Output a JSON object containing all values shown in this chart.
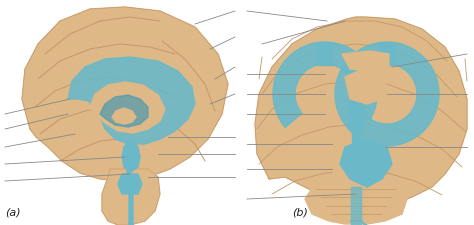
{
  "background_color": "#ffffff",
  "label_a": "(a)",
  "label_b": "(b)",
  "label_fontsize": 8,
  "fig_width": 4.74,
  "fig_height": 2.26,
  "dpi": 100,
  "line_color": "#888888",
  "line_width": 0.6,
  "brain_color": "#deb887",
  "brain_shadow": "#c9a87c",
  "csf_color": "#6ab8c8",
  "csf_dark": "#4a9ab0",
  "sulci_color": "#c4976a",
  "annotation_lines_a": [
    [
      [
        0.215,
        0.93
      ],
      [
        0.24,
        0.93
      ]
    ],
    [
      [
        0.215,
        0.87
      ],
      [
        0.24,
        0.87
      ]
    ],
    [
      [
        0.215,
        0.81
      ],
      [
        0.24,
        0.81
      ]
    ],
    [
      [
        0.215,
        0.74
      ],
      [
        0.24,
        0.74
      ]
    ],
    [
      [
        0.05,
        0.56
      ],
      [
        0.12,
        0.56
      ]
    ],
    [
      [
        0.05,
        0.49
      ],
      [
        0.12,
        0.49
      ]
    ],
    [
      [
        0.05,
        0.42
      ],
      [
        0.12,
        0.42
      ]
    ],
    [
      [
        0.05,
        0.33
      ],
      [
        0.17,
        0.37
      ]
    ],
    [
      [
        0.05,
        0.26
      ],
      [
        0.17,
        0.3
      ]
    ],
    [
      [
        0.35,
        0.6
      ],
      [
        0.42,
        0.6
      ]
    ],
    [
      [
        0.35,
        0.5
      ],
      [
        0.42,
        0.5
      ]
    ],
    [
      [
        0.35,
        0.35
      ],
      [
        0.42,
        0.35
      ]
    ]
  ],
  "annotation_lines_b": [
    [
      [
        0.56,
        0.93
      ],
      [
        0.62,
        0.88
      ]
    ],
    [
      [
        0.56,
        0.87
      ],
      [
        0.65,
        0.83
      ]
    ],
    [
      [
        0.56,
        0.75
      ],
      [
        0.62,
        0.72
      ]
    ],
    [
      [
        0.56,
        0.67
      ],
      [
        0.62,
        0.65
      ]
    ],
    [
      [
        0.56,
        0.59
      ],
      [
        0.62,
        0.57
      ]
    ],
    [
      [
        0.56,
        0.51
      ],
      [
        0.62,
        0.5
      ]
    ],
    [
      [
        0.56,
        0.38
      ],
      [
        0.62,
        0.4
      ]
    ],
    [
      [
        0.56,
        0.27
      ],
      [
        0.72,
        0.27
      ]
    ],
    [
      [
        0.92,
        0.8
      ],
      [
        0.85,
        0.8
      ]
    ],
    [
      [
        0.92,
        0.72
      ],
      [
        0.85,
        0.72
      ]
    ],
    [
      [
        0.92,
        0.57
      ],
      [
        0.85,
        0.57
      ]
    ]
  ]
}
